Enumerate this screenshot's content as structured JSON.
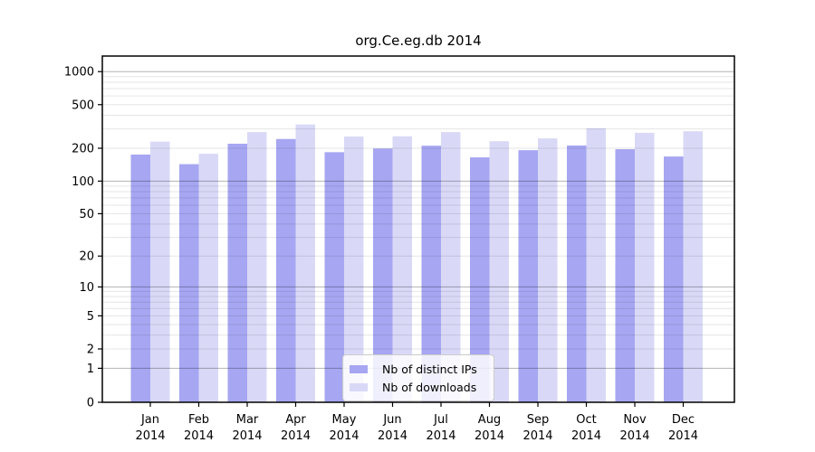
{
  "title": "org.Ce.eg.db 2014",
  "chart_data": {
    "type": "bar",
    "title": "org.Ce.eg.db 2014",
    "categories": [
      "Jan",
      "Feb",
      "Mar",
      "Apr",
      "May",
      "Jun",
      "Jul",
      "Aug",
      "Sep",
      "Oct",
      "Nov",
      "Dec"
    ],
    "x_tick_year": "2014",
    "series": [
      {
        "name": "Nb of distinct IPs",
        "color": "#a6a6f2",
        "values": [
          175,
          143,
          220,
          243,
          184,
          199,
          211,
          165,
          192,
          212,
          196,
          168
        ]
      },
      {
        "name": "Nb of downloads",
        "color": "#d9d9f7",
        "values": [
          230,
          178,
          281,
          330,
          256,
          257,
          281,
          232,
          246,
          305,
          277,
          286
        ]
      }
    ],
    "y_ticks": [
      0,
      1,
      2,
      5,
      10,
      20,
      50,
      100,
      200,
      500,
      1000
    ],
    "y_scale": "log(1+v)",
    "ylim": [
      0,
      1390
    ],
    "grid": {
      "major_values": [
        1,
        10,
        100,
        1000
      ],
      "minor_subs": [
        2,
        3,
        4,
        5,
        6,
        7,
        8,
        9
      ],
      "minor_decades": [
        1,
        10,
        100
      ]
    },
    "legend_position": "bottom-center",
    "legend_entries": [
      "Nb of distinct IPs",
      "Nb of downloads"
    ]
  },
  "colors": {
    "background": "#ffffff",
    "bar_dark": "#a6a6f2",
    "bar_light": "#d9d9f7",
    "grid_major": "rgba(0,0,0,0.30)",
    "grid_minor": "rgba(0,0,0,0.10)",
    "spine": "#000000",
    "tick_text": "#000000"
  }
}
